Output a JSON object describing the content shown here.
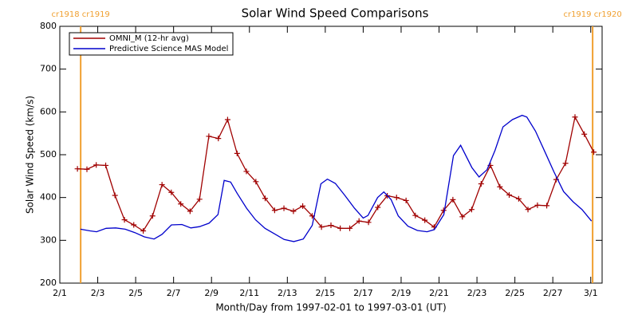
{
  "chart_data": {
    "type": "line",
    "title": "Solar Wind Speed Comparisons",
    "x_label": "Month/Day from 1997-02-01 to 1997-03-01 (UT)",
    "y_label": "Solar Wind Speed (km/s)",
    "xlim": [
      0,
      28.6
    ],
    "ylim": [
      200,
      800
    ],
    "yticks": [
      200,
      300,
      400,
      500,
      600,
      700,
      800
    ],
    "xticks": [
      {
        "value": 0,
        "label": "2/1"
      },
      {
        "value": 2,
        "label": "2/3"
      },
      {
        "value": 4,
        "label": "2/5"
      },
      {
        "value": 6,
        "label": "2/7"
      },
      {
        "value": 8,
        "label": "2/9"
      },
      {
        "value": 10,
        "label": "2/11"
      },
      {
        "value": 12,
        "label": "2/13"
      },
      {
        "value": 14,
        "label": "2/15"
      },
      {
        "value": 16,
        "label": "2/17"
      },
      {
        "value": 18,
        "label": "2/19"
      },
      {
        "value": 20,
        "label": "2/21"
      },
      {
        "value": 22,
        "label": "2/23"
      },
      {
        "value": 24,
        "label": "2/25"
      },
      {
        "value": 26,
        "label": "2/27"
      },
      {
        "value": 28,
        "label": "3/1"
      }
    ],
    "legend": "upper left",
    "annotations": [
      {
        "x": 1.1,
        "label": "cr1918 cr1919",
        "color": "#f0a030"
      },
      {
        "x": 28.1,
        "label": "cr1919 cr1920",
        "color": "#f0a030"
      }
    ],
    "series": [
      {
        "name": "OMNI_M (12-hr avg)",
        "color": "#a00000",
        "marker": "plus",
        "x": [
          0.93,
          1.43,
          1.92,
          2.42,
          2.91,
          3.41,
          3.9,
          4.4,
          4.89,
          5.39,
          5.88,
          6.38,
          6.87,
          7.37,
          7.86,
          8.36,
          8.85,
          9.35,
          9.84,
          10.34,
          10.83,
          11.33,
          11.82,
          12.32,
          12.81,
          13.31,
          13.8,
          14.3,
          14.79,
          15.29,
          15.78,
          16.28,
          16.77,
          17.27,
          17.76,
          18.26,
          18.75,
          19.25,
          19.74,
          20.24,
          20.73,
          21.23,
          21.72,
          22.22,
          22.71,
          23.21,
          23.7,
          24.2,
          24.69,
          25.19,
          25.68,
          26.18,
          26.67,
          27.17,
          27.66,
          28.16
        ],
        "values": [
          467,
          466,
          476,
          475,
          405,
          348,
          336,
          322,
          357,
          430,
          412,
          385,
          368,
          396,
          543,
          538,
          582,
          503,
          461,
          437,
          398,
          370,
          375,
          368,
          380,
          357,
          331,
          335,
          328,
          328,
          345,
          342,
          377,
          404,
          400,
          393,
          358,
          347,
          331,
          370,
          395,
          355,
          372,
          432,
          475,
          425,
          406,
          397,
          372,
          382,
          381,
          442,
          480,
          588,
          548,
          506
        ]
      },
      {
        "name": "Predictive Science MAS Model",
        "color": "#0000cc",
        "marker": "none",
        "x": [
          1.09,
          1.6,
          1.94,
          2.44,
          2.95,
          3.45,
          3.96,
          4.46,
          4.97,
          5.39,
          5.89,
          6.44,
          6.91,
          7.37,
          7.87,
          8.34,
          8.67,
          9.01,
          9.35,
          9.85,
          10.32,
          10.82,
          11.33,
          11.83,
          12.34,
          12.84,
          13.31,
          13.77,
          14.11,
          14.53,
          15.03,
          15.54,
          16.0,
          16.25,
          16.76,
          17.09,
          17.47,
          17.85,
          18.36,
          18.86,
          19.37,
          19.75,
          20.25,
          20.76,
          21.14,
          21.73,
          22.11,
          22.53,
          22.95,
          23.37,
          23.87,
          24.38,
          24.63,
          25.09,
          25.6,
          26.06,
          26.57,
          27.07,
          27.54,
          28.04
        ],
        "values": [
          326,
          322,
          320,
          328,
          329,
          326,
          318,
          308,
          303,
          314,
          336,
          337,
          329,
          332,
          340,
          360,
          440,
          436,
          410,
          375,
          348,
          328,
          315,
          302,
          297,
          303,
          335,
          432,
          443,
          433,
          405,
          375,
          352,
          358,
          400,
          413,
          395,
          357,
          333,
          323,
          320,
          325,
          360,
          498,
          522,
          470,
          448,
          465,
          510,
          565,
          582,
          592,
          588,
          555,
          505,
          460,
          414,
          390,
          372,
          345
        ]
      }
    ]
  }
}
